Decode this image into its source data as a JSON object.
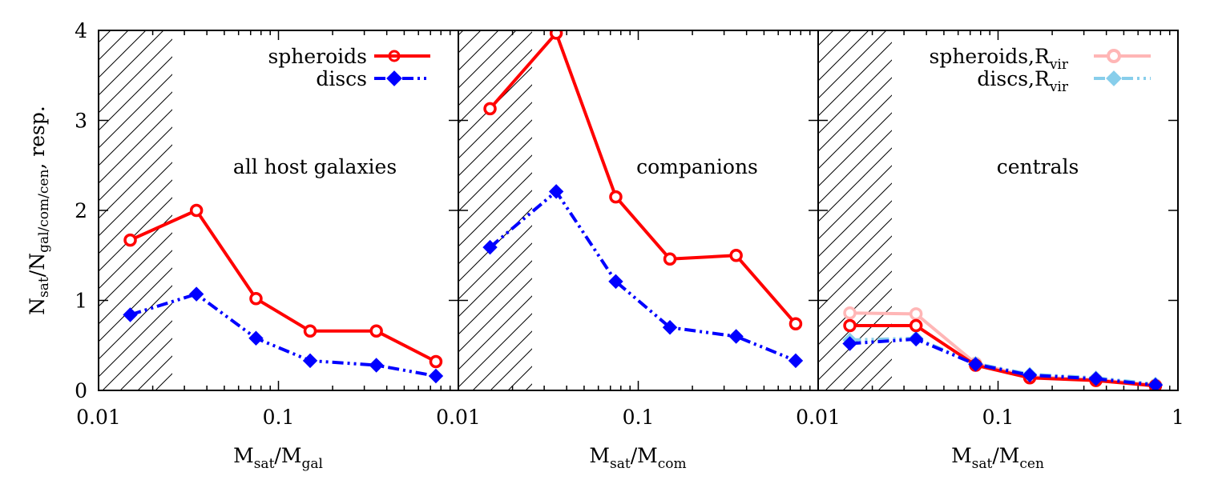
{
  "chart_data": [
    {
      "type": "line",
      "panel_label": "all host galaxies",
      "xlabel": {
        "base": "M",
        "sub1": "sat",
        "sep": "/M",
        "sub2": "gal"
      },
      "ylabel": {
        "base": "N",
        "sub1": "sat",
        "sep": "/N",
        "sub2": "gal/com/cen",
        "tail": ", resp."
      },
      "x_scale": "log",
      "xlim": [
        0.01,
        1
      ],
      "ylim": [
        0,
        4
      ],
      "x_ticks": [
        {
          "value": 0.01,
          "label": "0.01"
        },
        {
          "value": 0.1,
          "label": "0.1"
        }
      ],
      "y_ticks": [
        {
          "value": 0,
          "label": "0"
        },
        {
          "value": 1,
          "label": "1"
        },
        {
          "value": 2,
          "label": "2"
        },
        {
          "value": 3,
          "label": "3"
        },
        {
          "value": 4,
          "label": "4"
        }
      ],
      "hatched_region": [
        0.01,
        0.025
      ],
      "legend_position": "top-right",
      "series": [
        {
          "name": "spheroids",
          "color": "#ff0000",
          "style": "solid",
          "marker": "circle",
          "x": [
            0.015,
            0.035,
            0.075,
            0.15,
            0.35,
            0.75
          ],
          "y": [
            1.67,
            2.0,
            1.02,
            0.66,
            0.66,
            0.32
          ]
        },
        {
          "name": "discs",
          "color": "#0000ff",
          "style": "dash-dot",
          "marker": "diamond",
          "x": [
            0.015,
            0.035,
            0.075,
            0.15,
            0.35,
            0.75
          ],
          "y": [
            0.84,
            1.07,
            0.58,
            0.33,
            0.28,
            0.16
          ]
        }
      ]
    },
    {
      "type": "line",
      "panel_label": "companions",
      "xlabel": {
        "base": "M",
        "sub1": "sat",
        "sep": "/M",
        "sub2": "com"
      },
      "x_scale": "log",
      "xlim": [
        0.01,
        1
      ],
      "ylim": [
        0,
        4
      ],
      "x_ticks": [
        {
          "value": 0.01,
          "label": "0.01"
        },
        {
          "value": 0.1,
          "label": "0.1"
        }
      ],
      "hatched_region": [
        0.01,
        0.025
      ],
      "series": [
        {
          "name": "spheroids",
          "color": "#ff0000",
          "style": "solid",
          "marker": "circle",
          "x": [
            0.015,
            0.035,
            0.075,
            0.15,
            0.35,
            0.75
          ],
          "y": [
            3.13,
            3.97,
            2.15,
            1.46,
            1.5,
            0.74
          ]
        },
        {
          "name": "discs",
          "color": "#0000ff",
          "style": "dash-dot",
          "marker": "diamond",
          "x": [
            0.015,
            0.035,
            0.075,
            0.15,
            0.35,
            0.75
          ],
          "y": [
            1.59,
            2.21,
            1.21,
            0.7,
            0.6,
            0.33
          ]
        }
      ]
    },
    {
      "type": "line",
      "panel_label": "centrals",
      "xlabel": {
        "base": "M",
        "sub1": "sat",
        "sep": "/M",
        "sub2": "cen"
      },
      "x_scale": "log",
      "xlim": [
        0.01,
        1
      ],
      "ylim": [
        0,
        4
      ],
      "x_ticks": [
        {
          "value": 0.01,
          "label": "0.01"
        },
        {
          "value": 0.1,
          "label": "0.1"
        },
        {
          "value": 1,
          "label": "1"
        }
      ],
      "hatched_region": [
        0.01,
        0.025
      ],
      "legend_position": "top-right",
      "series": [
        {
          "name": "spheroids,R",
          "name_sub": "vir",
          "color": "#ffb6b6",
          "style": "solid",
          "marker": "circle",
          "x": [
            0.015,
            0.035,
            0.075,
            0.15,
            0.35,
            0.75
          ],
          "y": [
            0.86,
            0.85,
            0.3,
            0.15,
            0.12,
            0.06
          ]
        },
        {
          "name": "discs,R",
          "name_sub": "vir",
          "color": "#87ceeb",
          "style": "dash-dot",
          "marker": "diamond",
          "x": [
            0.015,
            0.035,
            0.075,
            0.15,
            0.35,
            0.75
          ],
          "y": [
            0.56,
            0.58,
            0.3,
            0.18,
            0.14,
            0.07
          ]
        },
        {
          "name": "",
          "color": "#ff0000",
          "style": "solid",
          "marker": "circle",
          "x": [
            0.015,
            0.035,
            0.075,
            0.15,
            0.35,
            0.75
          ],
          "y": [
            0.72,
            0.72,
            0.28,
            0.14,
            0.11,
            0.05
          ]
        },
        {
          "name": "",
          "color": "#0000ff",
          "style": "dash-dot",
          "marker": "diamond",
          "x": [
            0.015,
            0.035,
            0.075,
            0.15,
            0.35,
            0.75
          ],
          "y": [
            0.52,
            0.57,
            0.29,
            0.17,
            0.13,
            0.06
          ]
        }
      ]
    }
  ]
}
